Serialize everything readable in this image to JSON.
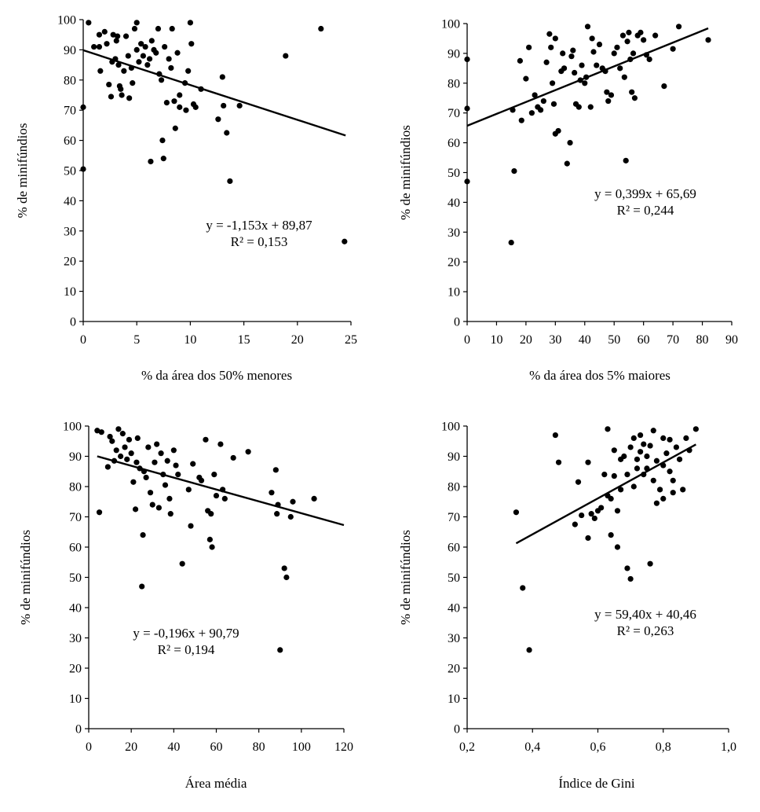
{
  "chart_data": [
    {
      "type": "scatter",
      "xlabel": "% da área dos 50% menores",
      "ylabel": "% de minifúndios",
      "xlim": [
        0,
        25
      ],
      "ylim": [
        0,
        100
      ],
      "xticks": [
        "0",
        "5",
        "10",
        "15",
        "20",
        "25"
      ],
      "yticks": [
        "0",
        "10",
        "20",
        "30",
        "40",
        "50",
        "60",
        "70",
        "80",
        "90",
        "100"
      ],
      "equation": "y = -1,153x + 89,87",
      "r2": "R² = 0,153",
      "trendline": {
        "slope": -1.153,
        "intercept": 89.87,
        "x_range": [
          0,
          24.5
        ]
      },
      "points": [
        [
          0,
          71
        ],
        [
          0,
          50.5
        ],
        [
          0.5,
          99
        ],
        [
          1,
          91
        ],
        [
          1.5,
          95
        ],
        [
          1.5,
          91
        ],
        [
          1.6,
          83
        ],
        [
          2,
          96
        ],
        [
          2.2,
          92
        ],
        [
          2.4,
          78.5
        ],
        [
          2.6,
          74.5
        ],
        [
          2.7,
          86
        ],
        [
          2.8,
          95
        ],
        [
          3,
          87
        ],
        [
          3.1,
          93
        ],
        [
          3.2,
          94.5
        ],
        [
          3.3,
          85
        ],
        [
          3.4,
          78
        ],
        [
          3.5,
          77
        ],
        [
          3.6,
          75
        ],
        [
          3.8,
          83
        ],
        [
          4,
          94.5
        ],
        [
          4.2,
          88
        ],
        [
          4.3,
          74
        ],
        [
          4.5,
          84
        ],
        [
          4.6,
          79
        ],
        [
          4.8,
          97
        ],
        [
          5,
          99
        ],
        [
          5,
          90
        ],
        [
          5.2,
          86
        ],
        [
          5.4,
          92
        ],
        [
          5.6,
          88
        ],
        [
          5.8,
          91
        ],
        [
          6,
          85
        ],
        [
          6.2,
          87
        ],
        [
          6.3,
          53
        ],
        [
          6.4,
          93
        ],
        [
          6.6,
          90
        ],
        [
          6.8,
          89
        ],
        [
          7,
          97
        ],
        [
          7.1,
          82
        ],
        [
          7.3,
          80
        ],
        [
          7.4,
          60
        ],
        [
          7.5,
          54
        ],
        [
          7.6,
          91
        ],
        [
          7.8,
          72.5
        ],
        [
          8,
          87
        ],
        [
          8.2,
          84
        ],
        [
          8.3,
          97
        ],
        [
          8.5,
          73
        ],
        [
          8.6,
          64
        ],
        [
          8.8,
          89
        ],
        [
          9,
          71
        ],
        [
          9,
          75
        ],
        [
          9.5,
          79
        ],
        [
          9.6,
          70
        ],
        [
          9.8,
          83
        ],
        [
          10,
          99
        ],
        [
          10.1,
          92
        ],
        [
          10.3,
          72
        ],
        [
          10.5,
          71
        ],
        [
          11,
          77
        ],
        [
          12.6,
          67
        ],
        [
          13,
          81
        ],
        [
          13.1,
          71.5
        ],
        [
          13.4,
          62.5
        ],
        [
          13.7,
          46.5
        ],
        [
          14.6,
          71.5
        ],
        [
          18.9,
          88
        ],
        [
          22.2,
          97
        ],
        [
          24.4,
          26.5
        ]
      ]
    },
    {
      "type": "scatter",
      "xlabel": "% da área dos 5% maiores",
      "ylabel": "% de minifúndios",
      "xlim": [
        0,
        90
      ],
      "ylim": [
        0,
        100
      ],
      "xticks": [
        "0",
        "10",
        "20",
        "30",
        "40",
        "50",
        "60",
        "70",
        "80",
        "90"
      ],
      "yticks": [
        "0",
        "10",
        "20",
        "30",
        "40",
        "50",
        "60",
        "70",
        "80",
        "90",
        "100"
      ],
      "equation": "y = 0,399x + 65,69",
      "r2": "R² = 0,244",
      "trendline": {
        "slope": 0.399,
        "intercept": 65.69,
        "x_range": [
          0,
          82
        ]
      },
      "points": [
        [
          0,
          88
        ],
        [
          0,
          71.5
        ],
        [
          0,
          47
        ],
        [
          15,
          26.5
        ],
        [
          15.5,
          71
        ],
        [
          16,
          50.5
        ],
        [
          18,
          87.5
        ],
        [
          18.5,
          67.5
        ],
        [
          20,
          81.5
        ],
        [
          21,
          92
        ],
        [
          22,
          70
        ],
        [
          23,
          76
        ],
        [
          24,
          72
        ],
        [
          25,
          71
        ],
        [
          26,
          74
        ],
        [
          27,
          87
        ],
        [
          28,
          96.5
        ],
        [
          28.5,
          92
        ],
        [
          29,
          80
        ],
        [
          29.5,
          73
        ],
        [
          30,
          95
        ],
        [
          30,
          63
        ],
        [
          31,
          64
        ],
        [
          32,
          84
        ],
        [
          32.5,
          90
        ],
        [
          33,
          85
        ],
        [
          34,
          53
        ],
        [
          35,
          60
        ],
        [
          35.5,
          89
        ],
        [
          36,
          91
        ],
        [
          36.5,
          83.5
        ],
        [
          37,
          73
        ],
        [
          38,
          72
        ],
        [
          38.5,
          81
        ],
        [
          39,
          86
        ],
        [
          40,
          80
        ],
        [
          40.5,
          82
        ],
        [
          41,
          99
        ],
        [
          42,
          72
        ],
        [
          42.5,
          95
        ],
        [
          43,
          90.5
        ],
        [
          44,
          86
        ],
        [
          45,
          93
        ],
        [
          46,
          85
        ],
        [
          47,
          84
        ],
        [
          47.5,
          77
        ],
        [
          48,
          74
        ],
        [
          49,
          76
        ],
        [
          50,
          90
        ],
        [
          51,
          92
        ],
        [
          52,
          85
        ],
        [
          53,
          96
        ],
        [
          53.5,
          82
        ],
        [
          54,
          54
        ],
        [
          54.5,
          94
        ],
        [
          55,
          97
        ],
        [
          55.5,
          88
        ],
        [
          56,
          77
        ],
        [
          56.5,
          90
        ],
        [
          57,
          75
        ],
        [
          58,
          96
        ],
        [
          59,
          97
        ],
        [
          60,
          94.5
        ],
        [
          61,
          89.5
        ],
        [
          62,
          88
        ],
        [
          64,
          96
        ],
        [
          67,
          79
        ],
        [
          70,
          91.5
        ],
        [
          72,
          99
        ],
        [
          82,
          94.5
        ]
      ]
    },
    {
      "type": "scatter",
      "xlabel": "Área média",
      "ylabel": "% de minifúndios",
      "xlim": [
        0,
        120
      ],
      "ylim": [
        0,
        100
      ],
      "xticks": [
        "0",
        "20",
        "40",
        "60",
        "80",
        "100",
        "120"
      ],
      "yticks": [
        "0",
        "10",
        "20",
        "30",
        "40",
        "50",
        "60",
        "70",
        "80",
        "90",
        "100"
      ],
      "equation": "y = -0,196x + 90,79",
      "r2": "R² = 0,194",
      "trendline": {
        "slope": -0.196,
        "intercept": 90.79,
        "x_range": [
          4,
          120
        ]
      },
      "points": [
        [
          4,
          98.5
        ],
        [
          5,
          71.5
        ],
        [
          6,
          98
        ],
        [
          9,
          86.5
        ],
        [
          10,
          96.5
        ],
        [
          11,
          95
        ],
        [
          12,
          88.5
        ],
        [
          13,
          92
        ],
        [
          14,
          99
        ],
        [
          15,
          90
        ],
        [
          16,
          97.5
        ],
        [
          17,
          93
        ],
        [
          18,
          89
        ],
        [
          19,
          95.5
        ],
        [
          20,
          91
        ],
        [
          21,
          81.5
        ],
        [
          22,
          72.5
        ],
        [
          22.5,
          88
        ],
        [
          23,
          96
        ],
        [
          24,
          86
        ],
        [
          25,
          47
        ],
        [
          25.5,
          64
        ],
        [
          26,
          85
        ],
        [
          27,
          83
        ],
        [
          28,
          93
        ],
        [
          29,
          78
        ],
        [
          30,
          74
        ],
        [
          31,
          88
        ],
        [
          32,
          94
        ],
        [
          33,
          73
        ],
        [
          34,
          91
        ],
        [
          35,
          84
        ],
        [
          36,
          80.5
        ],
        [
          37,
          88.5
        ],
        [
          38,
          76
        ],
        [
          38.5,
          71
        ],
        [
          40,
          92
        ],
        [
          41,
          87
        ],
        [
          42,
          84
        ],
        [
          44,
          54.5
        ],
        [
          47,
          79
        ],
        [
          48,
          67
        ],
        [
          49,
          87.5
        ],
        [
          52,
          83
        ],
        [
          53,
          82
        ],
        [
          55,
          95.5
        ],
        [
          56,
          72
        ],
        [
          57,
          62.5
        ],
        [
          57.5,
          71
        ],
        [
          58,
          60
        ],
        [
          59,
          84
        ],
        [
          60,
          77
        ],
        [
          62,
          94
        ],
        [
          63,
          79
        ],
        [
          64,
          76
        ],
        [
          68,
          89.5
        ],
        [
          75,
          91.5
        ],
        [
          86,
          78
        ],
        [
          88,
          85.5
        ],
        [
          88.5,
          71
        ],
        [
          89,
          74
        ],
        [
          90,
          26
        ],
        [
          92,
          53
        ],
        [
          93,
          50
        ],
        [
          95,
          70
        ],
        [
          96,
          75
        ],
        [
          106,
          76
        ]
      ]
    },
    {
      "type": "scatter",
      "xlabel": "Índice de Gini",
      "ylabel": "% de minifúndios",
      "xlim": [
        0.2,
        1.0
      ],
      "ylim": [
        0,
        100
      ],
      "xticks": [
        "0,2",
        "0,4",
        "0,6",
        "0,8",
        "1,0"
      ],
      "yticks": [
        "0",
        "10",
        "20",
        "30",
        "40",
        "50",
        "60",
        "70",
        "80",
        "90",
        "100"
      ],
      "equation": "y = 59,40x + 40,46",
      "r2": "R² = 0,263",
      "trendline": {
        "slope": 59.4,
        "intercept": 40.46,
        "x_range": [
          0.35,
          0.9
        ]
      },
      "points": [
        [
          0.35,
          71.5
        ],
        [
          0.37,
          46.5
        ],
        [
          0.39,
          26
        ],
        [
          0.47,
          97
        ],
        [
          0.48,
          88
        ],
        [
          0.53,
          67.5
        ],
        [
          0.54,
          81.5
        ],
        [
          0.55,
          70.5
        ],
        [
          0.57,
          63
        ],
        [
          0.57,
          88
        ],
        [
          0.58,
          71
        ],
        [
          0.59,
          69.5
        ],
        [
          0.6,
          72
        ],
        [
          0.61,
          73
        ],
        [
          0.62,
          84
        ],
        [
          0.63,
          77
        ],
        [
          0.63,
          99
        ],
        [
          0.64,
          64
        ],
        [
          0.64,
          76
        ],
        [
          0.65,
          83.5
        ],
        [
          0.65,
          92
        ],
        [
          0.66,
          60
        ],
        [
          0.66,
          72
        ],
        [
          0.67,
          79
        ],
        [
          0.67,
          89
        ],
        [
          0.68,
          90
        ],
        [
          0.69,
          53
        ],
        [
          0.69,
          84
        ],
        [
          0.7,
          49.5
        ],
        [
          0.7,
          93
        ],
        [
          0.71,
          80
        ],
        [
          0.71,
          96
        ],
        [
          0.72,
          86
        ],
        [
          0.72,
          89
        ],
        [
          0.73,
          97
        ],
        [
          0.73,
          91.5
        ],
        [
          0.74,
          84
        ],
        [
          0.74,
          94
        ],
        [
          0.75,
          86
        ],
        [
          0.75,
          90
        ],
        [
          0.76,
          54.5
        ],
        [
          0.76,
          93.5
        ],
        [
          0.77,
          98.5
        ],
        [
          0.77,
          82
        ],
        [
          0.78,
          74.5
        ],
        [
          0.78,
          88.5
        ],
        [
          0.79,
          79
        ],
        [
          0.8,
          87
        ],
        [
          0.8,
          96
        ],
        [
          0.8,
          76
        ],
        [
          0.81,
          91
        ],
        [
          0.82,
          85
        ],
        [
          0.82,
          95.5
        ],
        [
          0.83,
          78
        ],
        [
          0.83,
          82
        ],
        [
          0.84,
          93
        ],
        [
          0.85,
          89
        ],
        [
          0.86,
          79
        ],
        [
          0.87,
          96
        ],
        [
          0.88,
          92
        ],
        [
          0.9,
          99
        ]
      ]
    }
  ]
}
